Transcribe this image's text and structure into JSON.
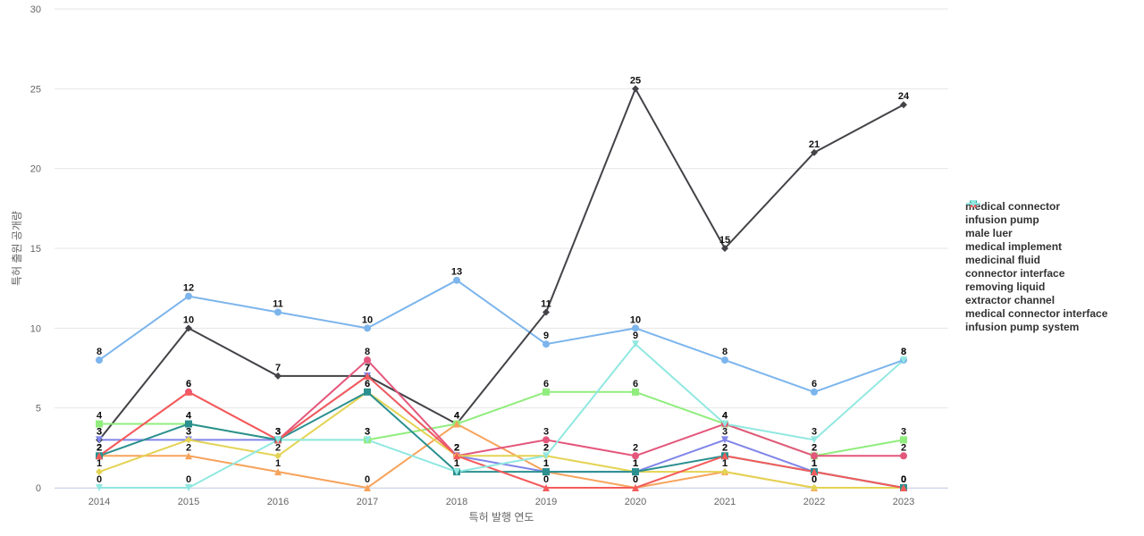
{
  "chart_data": {
    "type": "line",
    "title": "",
    "xlabel": "특허 발행 연도",
    "ylabel": "특허 출원 공개량",
    "ylim": [
      0,
      30
    ],
    "yticks": [
      0,
      5,
      10,
      15,
      20,
      25,
      30
    ],
    "grid": true,
    "legend_position": "right",
    "categories": [
      "2014",
      "2015",
      "2016",
      "2017",
      "2018",
      "2019",
      "2020",
      "2021",
      "2022",
      "2023"
    ],
    "series": [
      {
        "name": "medical connector",
        "color": "#7cb5ec",
        "marker": "circle",
        "values": [
          8,
          12,
          11,
          10,
          13,
          9,
          10,
          8,
          6,
          8
        ]
      },
      {
        "name": "infusion pump",
        "color": "#434348",
        "marker": "diamond",
        "values": [
          3,
          10,
          7,
          7,
          4,
          11,
          25,
          15,
          21,
          24
        ]
      },
      {
        "name": "male luer",
        "color": "#90ed7d",
        "marker": "square",
        "values": [
          4,
          4,
          3,
          3,
          4,
          6,
          6,
          4,
          2,
          3
        ]
      },
      {
        "name": "medical implement",
        "color": "#f7a35c",
        "marker": "triangle",
        "values": [
          2,
          2,
          1,
          0,
          4,
          1,
          0,
          1,
          0,
          0
        ]
      },
      {
        "name": "medicinal fluid",
        "color": "#8085e9",
        "marker": "triangle-down",
        "values": [
          3,
          3,
          3,
          7,
          2,
          1,
          1,
          3,
          1,
          0
        ]
      },
      {
        "name": "connector interface",
        "color": "#e4577c",
        "marker": "circle",
        "values": [
          2,
          6,
          3,
          8,
          2,
          3,
          2,
          4,
          2,
          2
        ]
      },
      {
        "name": "removing liquid",
        "color": "#e4d354",
        "marker": "diamond",
        "values": [
          1,
          3,
          2,
          6,
          2,
          2,
          1,
          1,
          0,
          0
        ]
      },
      {
        "name": "extractor channel",
        "color": "#2b908f",
        "marker": "square",
        "values": [
          2,
          4,
          3,
          6,
          1,
          1,
          1,
          2,
          1,
          0
        ]
      },
      {
        "name": "medical connector interface",
        "color": "#f45b5b",
        "marker": "triangle",
        "values": [
          2,
          6,
          3,
          7,
          2,
          0,
          0,
          2,
          1,
          0
        ]
      },
      {
        "name": "infusion pump system",
        "color": "#91e8e1",
        "marker": "triangle-down",
        "values": [
          0,
          0,
          3,
          3,
          1,
          2,
          9,
          4,
          3,
          8
        ]
      }
    ]
  }
}
